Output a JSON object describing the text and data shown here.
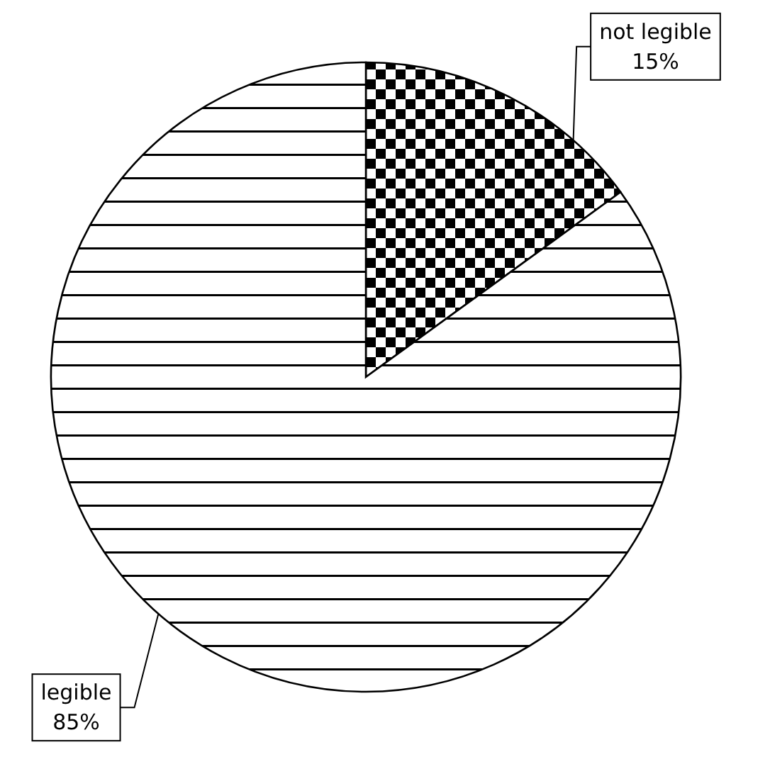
{
  "chart_data": {
    "type": "pie",
    "categories": [
      "not legible",
      "legible"
    ],
    "values": [
      15,
      85
    ],
    "value_labels": [
      "15%",
      "85%"
    ]
  }
}
